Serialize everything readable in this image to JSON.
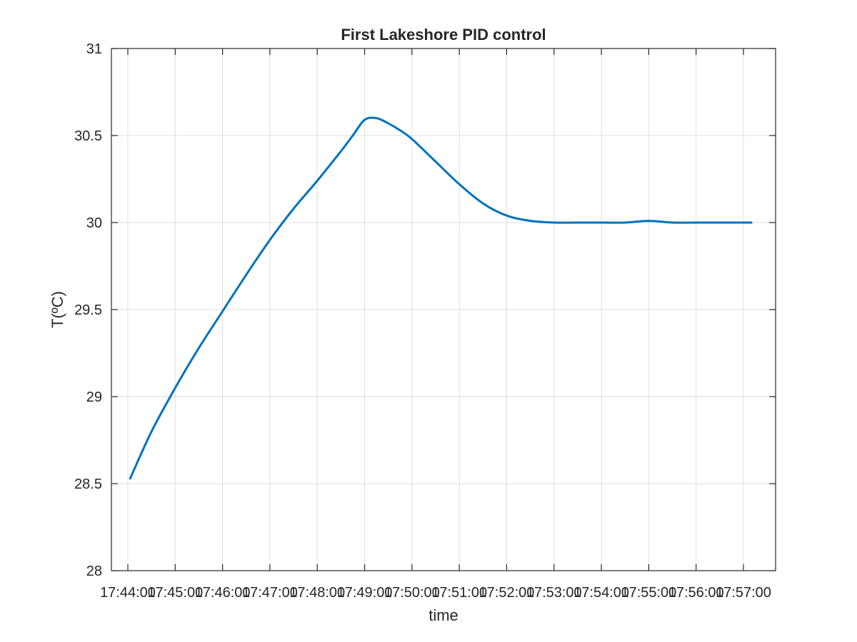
{
  "chart_data": {
    "type": "line",
    "title": "First Lakeshore PID control",
    "xlabel": "time",
    "ylabel": "T(ºC)",
    "ylim": [
      28,
      31
    ],
    "xlim": [
      "17:44:00",
      "17:57:00"
    ],
    "grid": true,
    "x_tick_labels": [
      "17:44:00",
      "17:45:00",
      "17:46:00",
      "17:47:00",
      "17:48:00",
      "17:49:00",
      "17:50:00",
      "17:51:00",
      "17:52:00",
      "17:53:00",
      "17:54:00",
      "17:55:00",
      "17:56:00",
      "17:57:00"
    ],
    "y_tick_labels": [
      "28",
      "28.5",
      "29",
      "29.5",
      "30",
      "30.5",
      "31"
    ],
    "series": [
      {
        "color": "#0072BD",
        "x": [
          "17:44:03",
          "17:44:30",
          "17:45:00",
          "17:45:30",
          "17:46:00",
          "17:46:30",
          "17:47:00",
          "17:47:30",
          "17:48:00",
          "17:48:30",
          "17:48:45",
          "17:49:00",
          "17:49:15",
          "17:49:30",
          "17:49:45",
          "17:50:00",
          "17:50:30",
          "17:51:00",
          "17:51:30",
          "17:52:00",
          "17:52:30",
          "17:53:00",
          "17:53:30",
          "17:54:00",
          "17:54:30",
          "17:55:00",
          "17:55:30",
          "17:56:00",
          "17:56:30",
          "17:57:00",
          "17:57:10"
        ],
        "y": [
          28.53,
          28.8,
          29.05,
          29.28,
          29.49,
          29.7,
          29.9,
          30.08,
          30.24,
          30.41,
          30.5,
          30.59,
          30.6,
          30.57,
          30.53,
          30.48,
          30.35,
          30.22,
          30.11,
          30.04,
          30.01,
          30.0,
          30.0,
          30.0,
          30.0,
          30.01,
          30.0,
          30.0,
          30.0,
          30.0,
          30.0
        ]
      }
    ]
  }
}
